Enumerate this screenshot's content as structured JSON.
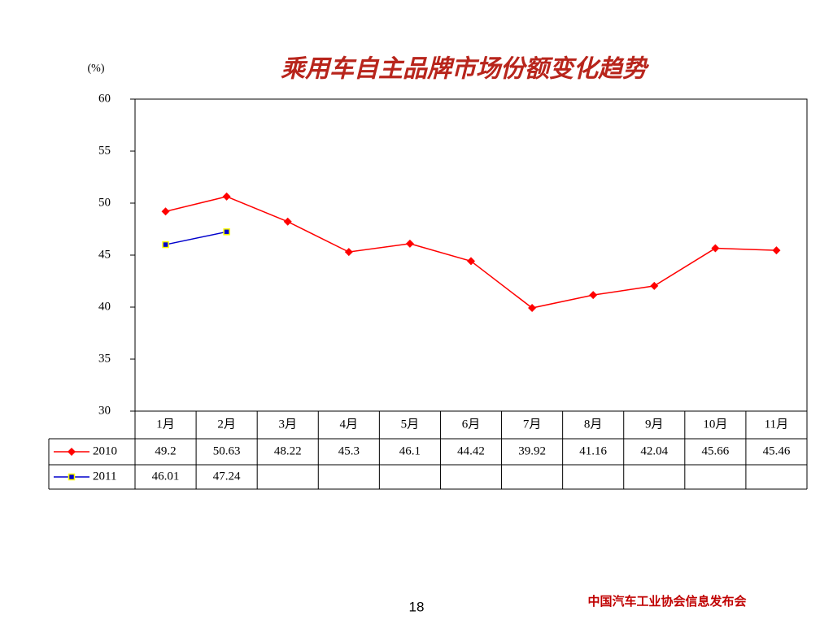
{
  "chart_data": {
    "type": "line",
    "title": "乘用车自主品牌市场份额变化趋势",
    "y_label": "(%)",
    "categories": [
      "1月",
      "2月",
      "3月",
      "4月",
      "5月",
      "6月",
      "7月",
      "8月",
      "9月",
      "10月",
      "11月"
    ],
    "series": [
      {
        "name": "2010",
        "color": "#ff0000",
        "marker": "diamond",
        "values": [
          49.2,
          50.63,
          48.22,
          45.3,
          46.1,
          44.42,
          39.92,
          41.16,
          42.04,
          45.66,
          45.46
        ]
      },
      {
        "name": "2011",
        "color": "#0000cc",
        "marker": "square",
        "values": [
          46.01,
          47.24,
          null,
          null,
          null,
          null,
          null,
          null,
          null,
          null,
          null
        ]
      }
    ],
    "ylim": [
      30,
      60
    ],
    "yticks": [
      30,
      35,
      40,
      45,
      50,
      55,
      60
    ],
    "grid": false,
    "data_table": true
  },
  "footer": {
    "page_number": "18",
    "organization": "中国汽车工业协会信息发布会"
  }
}
